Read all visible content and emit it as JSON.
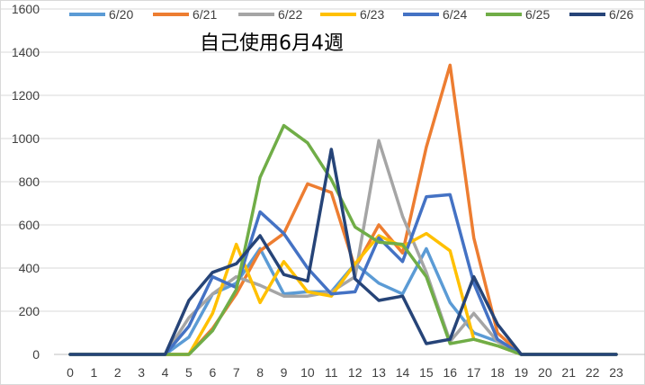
{
  "chart_data": {
    "type": "line",
    "title": "自己使用6月4週",
    "xlabel": "",
    "ylabel": "",
    "x": [
      0,
      1,
      2,
      3,
      4,
      5,
      6,
      7,
      8,
      9,
      10,
      11,
      12,
      13,
      14,
      15,
      16,
      17,
      18,
      19,
      20,
      21,
      22,
      23
    ],
    "ylim": [
      0,
      1600
    ],
    "yticks": [
      0,
      200,
      400,
      600,
      800,
      1000,
      1200,
      1400,
      1600
    ],
    "grid": true,
    "legend_position": "top",
    "series": [
      {
        "name": "6/20",
        "color": "#5b9bd5",
        "values": [
          0,
          0,
          0,
          0,
          0,
          80,
          280,
          330,
          490,
          280,
          290,
          290,
          420,
          330,
          280,
          490,
          240,
          100,
          60,
          0,
          0,
          0,
          0,
          0
        ]
      },
      {
        "name": "6/21",
        "color": "#ed7d31",
        "values": [
          0,
          0,
          0,
          0,
          0,
          0,
          120,
          280,
          480,
          560,
          790,
          750,
          400,
          600,
          470,
          960,
          1340,
          540,
          100,
          0,
          0,
          0,
          0,
          0
        ]
      },
      {
        "name": "6/22",
        "color": "#a5a5a5",
        "values": [
          0,
          0,
          0,
          0,
          0,
          170,
          280,
          360,
          320,
          270,
          270,
          290,
          360,
          990,
          640,
          380,
          60,
          190,
          60,
          0,
          0,
          0,
          0,
          0
        ]
      },
      {
        "name": "6/23",
        "color": "#ffc000",
        "values": [
          0,
          0,
          0,
          0,
          0,
          0,
          190,
          510,
          240,
          430,
          290,
          270,
          420,
          550,
          500,
          560,
          480,
          70,
          40,
          0,
          0,
          0,
          0,
          0
        ]
      },
      {
        "name": "6/24",
        "color": "#4472c4",
        "values": [
          0,
          0,
          0,
          0,
          0,
          130,
          360,
          310,
          660,
          560,
          400,
          280,
          290,
          540,
          430,
          730,
          740,
          330,
          70,
          0,
          0,
          0,
          0,
          0
        ]
      },
      {
        "name": "6/25",
        "color": "#70ad47",
        "values": [
          0,
          0,
          0,
          0,
          0,
          0,
          110,
          300,
          820,
          1060,
          980,
          810,
          590,
          520,
          510,
          360,
          50,
          70,
          40,
          0,
          0,
          0,
          0,
          0
        ]
      },
      {
        "name": "6/26",
        "color": "#264478",
        "values": [
          0,
          0,
          0,
          0,
          0,
          250,
          380,
          420,
          550,
          370,
          340,
          950,
          350,
          250,
          270,
          50,
          70,
          360,
          140,
          0,
          0,
          0,
          0,
          0
        ]
      }
    ]
  }
}
